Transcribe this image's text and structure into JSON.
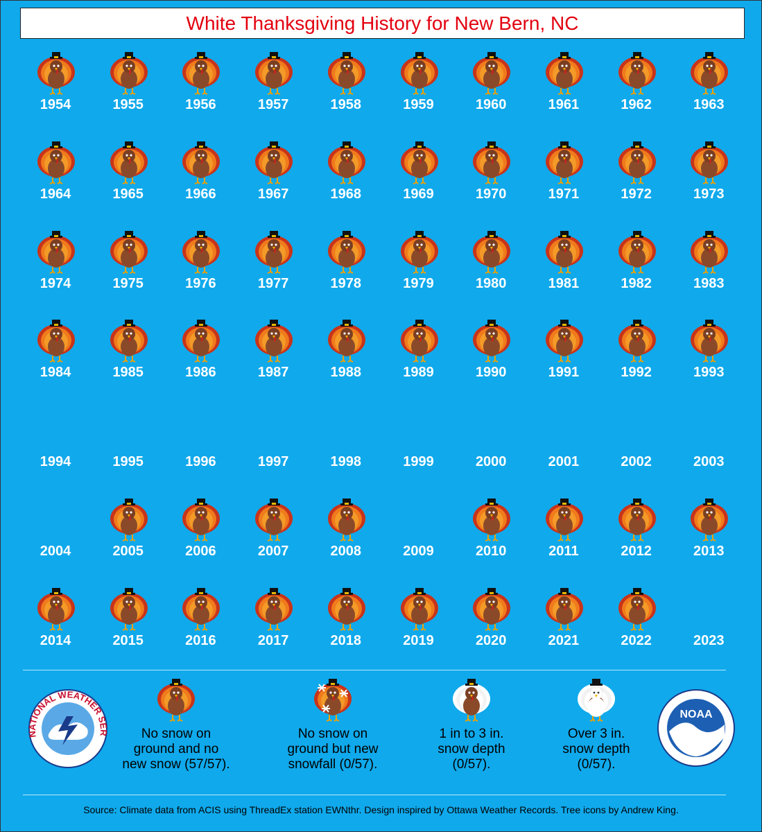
{
  "title": "White Thanksgiving History for New Bern, NC",
  "years": [
    {
      "year": "1954",
      "icon": "turkey"
    },
    {
      "year": "1955",
      "icon": "turkey"
    },
    {
      "year": "1956",
      "icon": "turkey"
    },
    {
      "year": "1957",
      "icon": "turkey"
    },
    {
      "year": "1958",
      "icon": "turkey"
    },
    {
      "year": "1959",
      "icon": "turkey"
    },
    {
      "year": "1960",
      "icon": "turkey"
    },
    {
      "year": "1961",
      "icon": "turkey"
    },
    {
      "year": "1962",
      "icon": "turkey"
    },
    {
      "year": "1963",
      "icon": "turkey"
    },
    {
      "year": "1964",
      "icon": "turkey"
    },
    {
      "year": "1965",
      "icon": "turkey"
    },
    {
      "year": "1966",
      "icon": "turkey"
    },
    {
      "year": "1967",
      "icon": "turkey"
    },
    {
      "year": "1968",
      "icon": "turkey"
    },
    {
      "year": "1969",
      "icon": "turkey"
    },
    {
      "year": "1970",
      "icon": "turkey"
    },
    {
      "year": "1971",
      "icon": "turkey"
    },
    {
      "year": "1972",
      "icon": "turkey"
    },
    {
      "year": "1973",
      "icon": "turkey"
    },
    {
      "year": "1974",
      "icon": "turkey"
    },
    {
      "year": "1975",
      "icon": "turkey"
    },
    {
      "year": "1976",
      "icon": "turkey"
    },
    {
      "year": "1977",
      "icon": "turkey"
    },
    {
      "year": "1978",
      "icon": "turkey"
    },
    {
      "year": "1979",
      "icon": "turkey"
    },
    {
      "year": "1980",
      "icon": "turkey"
    },
    {
      "year": "1981",
      "icon": "turkey"
    },
    {
      "year": "1982",
      "icon": "turkey"
    },
    {
      "year": "1983",
      "icon": "turkey"
    },
    {
      "year": "1984",
      "icon": "turkey"
    },
    {
      "year": "1985",
      "icon": "turkey"
    },
    {
      "year": "1986",
      "icon": "turkey"
    },
    {
      "year": "1987",
      "icon": "turkey"
    },
    {
      "year": "1988",
      "icon": "turkey"
    },
    {
      "year": "1989",
      "icon": "turkey"
    },
    {
      "year": "1990",
      "icon": "turkey"
    },
    {
      "year": "1991",
      "icon": "turkey"
    },
    {
      "year": "1992",
      "icon": "turkey"
    },
    {
      "year": "1993",
      "icon": "turkey"
    },
    {
      "year": "1994",
      "icon": "none"
    },
    {
      "year": "1995",
      "icon": "none"
    },
    {
      "year": "1996",
      "icon": "none"
    },
    {
      "year": "1997",
      "icon": "none"
    },
    {
      "year": "1998",
      "icon": "none"
    },
    {
      "year": "1999",
      "icon": "none"
    },
    {
      "year": "2000",
      "icon": "none"
    },
    {
      "year": "2001",
      "icon": "none"
    },
    {
      "year": "2002",
      "icon": "none"
    },
    {
      "year": "2003",
      "icon": "none"
    },
    {
      "year": "2004",
      "icon": "none"
    },
    {
      "year": "2005",
      "icon": "turkey"
    },
    {
      "year": "2006",
      "icon": "turkey"
    },
    {
      "year": "2007",
      "icon": "turkey"
    },
    {
      "year": "2008",
      "icon": "turkey"
    },
    {
      "year": "2009",
      "icon": "none"
    },
    {
      "year": "2010",
      "icon": "turkey"
    },
    {
      "year": "2011",
      "icon": "turkey"
    },
    {
      "year": "2012",
      "icon": "turkey"
    },
    {
      "year": "2013",
      "icon": "turkey"
    },
    {
      "year": "2014",
      "icon": "turkey"
    },
    {
      "year": "2015",
      "icon": "turkey"
    },
    {
      "year": "2016",
      "icon": "turkey"
    },
    {
      "year": "2017",
      "icon": "turkey"
    },
    {
      "year": "2018",
      "icon": "turkey"
    },
    {
      "year": "2019",
      "icon": "turkey"
    },
    {
      "year": "2020",
      "icon": "turkey"
    },
    {
      "year": "2021",
      "icon": "turkey"
    },
    {
      "year": "2022",
      "icon": "turkey"
    },
    {
      "year": "2023",
      "icon": "none"
    }
  ],
  "legend": [
    {
      "icon": "turkey",
      "line1": "No snow on",
      "line2": "ground and no",
      "line3": "new snow (57/57)."
    },
    {
      "icon": "turkey-snowflakes",
      "line1": "No snow on",
      "line2": "ground but new",
      "line3": "snowfall (0/57)."
    },
    {
      "icon": "turkey-light-snow",
      "line1": "1 in to 3 in.",
      "line2": "snow depth",
      "line3": "(0/57)."
    },
    {
      "icon": "turkey-heavy-snow",
      "line1": "Over 3 in.",
      "line2": "snow depth",
      "line3": "(0/57)."
    }
  ],
  "logos": {
    "nws": {
      "icon": "nws-logo-icon",
      "text": "NATIONAL WEATHER SERVICE"
    },
    "noaa": {
      "icon": "noaa-logo-icon",
      "text": "NOAA"
    }
  },
  "source": "Source: Climate data from ACIS using ThreadEx station EWNthr. Design inspired by Ottawa Weather Records. Tree icons by Andrew King.",
  "colors": {
    "background": "#10a9ec",
    "title": "#e3000f",
    "year_text": "#ffffff"
  }
}
